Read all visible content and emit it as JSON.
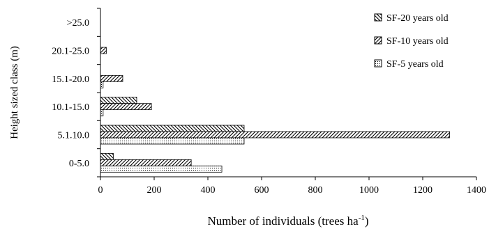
{
  "chart_data": {
    "type": "bar",
    "orientation": "horizontal",
    "title": "",
    "xlabel": "Number of individuals (trees ha",
    "xlabel_sup": "-1",
    "xlabel_end": ")",
    "ylabel": "Height sized class (m)",
    "categories": [
      "0-5.0",
      "5.1.10.0",
      "10.1-15.0",
      "15.1-20.0",
      "20.1-25.0",
      ">25.0"
    ],
    "xlim": [
      0,
      1400
    ],
    "xticks": [
      0,
      200,
      400,
      600,
      800,
      1000,
      1200,
      1400
    ],
    "grid": false,
    "legend_position": "top-right",
    "series": [
      {
        "name": "SF-20 years old",
        "pattern": "backslash",
        "values": [
          48,
          535,
          135,
          0,
          0,
          0
        ]
      },
      {
        "name": "SF-10 years old",
        "pattern": "slash",
        "values": [
          338,
          1300,
          190,
          83,
          22,
          0
        ]
      },
      {
        "name": "SF-5 years old",
        "pattern": "dots",
        "values": [
          452,
          535,
          10,
          10,
          0,
          0
        ]
      }
    ]
  }
}
